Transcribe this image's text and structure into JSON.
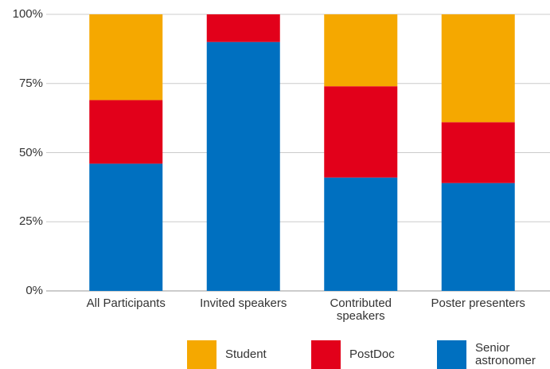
{
  "chart_data": {
    "type": "stacked_bar",
    "categories": [
      "All Participants",
      "Invited speakers",
      "Contributed speakers",
      "Poster presenters"
    ],
    "series": [
      {
        "name": "Senior astronomer",
        "color": "#0070c0",
        "values": [
          46,
          90,
          41,
          39
        ]
      },
      {
        "name": "PostDoc",
        "color": "#e2001a",
        "values": [
          23,
          10,
          33,
          22
        ]
      },
      {
        "name": "Student",
        "color": "#f5a800",
        "values": [
          31,
          0,
          26,
          39
        ]
      }
    ],
    "ylim": [
      0,
      100
    ],
    "yticks": [
      {
        "value": 0,
        "label": "0%"
      },
      {
        "value": 25,
        "label": "25%"
      },
      {
        "value": 50,
        "label": "50%"
      },
      {
        "value": 75,
        "label": "75%"
      },
      {
        "value": 100,
        "label": "100%"
      }
    ],
    "grid": true
  }
}
